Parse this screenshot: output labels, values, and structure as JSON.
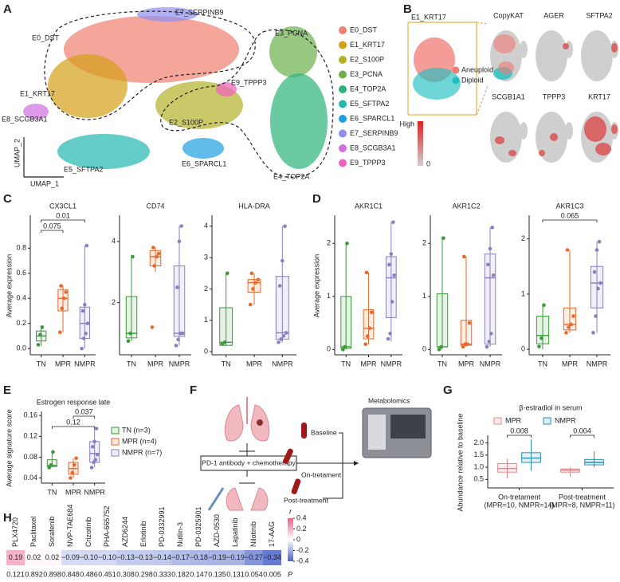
{
  "panels": [
    "A",
    "B",
    "C",
    "D",
    "E",
    "F",
    "G",
    "H"
  ],
  "umap": {
    "x_label": "UMAP_1",
    "y_label": "UMAP_2",
    "clusters": [
      {
        "name": "E0_DST",
        "color": "#f08070"
      },
      {
        "name": "E1_KRT17",
        "color": "#d4a017"
      },
      {
        "name": "E2_S100P",
        "color": "#b2b22a"
      },
      {
        "name": "E3_PCNA",
        "color": "#6ab04c"
      },
      {
        "name": "E4_TOP2A",
        "color": "#2db37a"
      },
      {
        "name": "E5_SFTPA2",
        "color": "#22b8b0"
      },
      {
        "name": "E6_SPARCL1",
        "color": "#1ea0e0"
      },
      {
        "name": "E7_SERPINB9",
        "color": "#8f8ff0"
      },
      {
        "name": "E8_SCGB3A1",
        "color": "#d070e0"
      },
      {
        "name": "E9_TPPP3",
        "color": "#f060c0"
      }
    ]
  },
  "feature_plots": {
    "inset_label": "E1_KRT17",
    "legend": [
      {
        "name": "Aneuploid",
        "color": "#f07b74"
      },
      {
        "name": "Diploid",
        "color": "#20c0c0"
      }
    ],
    "genes": [
      "CopyKAT",
      "AGER",
      "SFTPA2",
      "SCGB1A1",
      "TPPP3",
      "KRT17"
    ],
    "colorbar": {
      "high_label": "High",
      "low": 0,
      "colors": [
        "#d0d0d0",
        "#e02020"
      ]
    }
  },
  "diagram": {
    "baseline": "Baseline",
    "treatment": "PD-1 antibody + chemotherapy",
    "on": "On-tretament",
    "post": "Post-treatment",
    "metabolomics": "Metabolomics"
  },
  "chart_data": [
    {
      "type": "box",
      "title": "CX3CL1",
      "y_label": "Average expression",
      "categories": [
        "TN",
        "MPR",
        "NMPR"
      ],
      "ylim": [
        -0.05,
        1.05
      ],
      "yticks": [
        {
          "value": 0,
          "label": "0.0"
        },
        0.2,
        0.4,
        0.6,
        0.8
      ],
      "groups": [
        {
          "color": "#3a9a3a",
          "box": {
            "min": 0.02,
            "q1": 0.06,
            "median": 0.1,
            "q3": 0.14,
            "max": 0.18
          },
          "points": [
            0.03,
            0.11,
            0.17
          ]
        },
        {
          "color": "#e8692a",
          "box": {
            "min": 0.13,
            "q1": 0.3,
            "median": 0.4,
            "q3": 0.47,
            "max": 0.5
          },
          "points": [
            0.13,
            0.32,
            0.4,
            0.45,
            0.5
          ]
        },
        {
          "color": "#8a7fc0",
          "box": {
            "min": 0.0,
            "q1": 0.08,
            "median": 0.2,
            "q3": 0.33,
            "max": 0.82
          },
          "points": [
            0.0,
            0.08,
            0.12,
            0.2,
            0.3,
            0.35,
            0.82
          ]
        }
      ],
      "brackets": [
        {
          "from": "TN",
          "to": "NMPR",
          "p": 0.01
        },
        {
          "from": "TN",
          "to": "MPR",
          "p": 0.075
        }
      ]
    },
    {
      "type": "box",
      "title": "CD74",
      "categories": [
        "TN",
        "MPR",
        "NMPR"
      ],
      "ylim": [
        0.3,
        4.8
      ],
      "yticks": [
        2,
        4
      ],
      "groups": [
        {
          "color": "#3a9a3a",
          "box": {
            "min": 0.75,
            "q1": 0.85,
            "median": 1.0,
            "q3": 2.2,
            "max": 3.5
          },
          "points": [
            0.75,
            1.0,
            3.5
          ]
        },
        {
          "color": "#e8692a",
          "box": {
            "min": 3.0,
            "q1": 3.2,
            "median": 3.5,
            "q3": 3.7,
            "max": 3.8
          },
          "points": [
            1.2,
            3.2,
            3.5,
            3.6,
            3.8
          ]
        },
        {
          "color": "#8a7fc0",
          "box": {
            "min": 0.6,
            "q1": 0.9,
            "median": 1.0,
            "q3": 3.2,
            "max": 4.5
          },
          "points": [
            0.6,
            0.8,
            1.0,
            1.0,
            2.5,
            4.0,
            4.5
          ]
        }
      ],
      "brackets": []
    },
    {
      "type": "box",
      "title": "HLA-DRA",
      "categories": [
        "TN",
        "MPR",
        "NMPR"
      ],
      "ylim": [
        -0.1,
        4.3
      ],
      "yticks": [
        0,
        1,
        2,
        3,
        4
      ],
      "groups": [
        {
          "color": "#3a9a3a",
          "box": {
            "min": 0.2,
            "q1": 0.2,
            "median": 0.3,
            "q3": 1.4,
            "max": 2.5
          },
          "points": [
            0.25,
            0.3,
            2.5
          ]
        },
        {
          "color": "#e8692a",
          "box": {
            "min": 1.5,
            "q1": 1.9,
            "median": 2.2,
            "q3": 2.3,
            "max": 2.5
          },
          "points": [
            1.5,
            2.0,
            2.2,
            2.3,
            2.5
          ]
        },
        {
          "color": "#8a7fc0",
          "box": {
            "min": 0.3,
            "q1": 0.4,
            "median": 0.6,
            "q3": 2.4,
            "max": 4.0
          },
          "points": [
            0.3,
            0.4,
            0.5,
            0.6,
            2.1,
            2.9,
            4.0
          ]
        }
      ],
      "brackets": []
    },
    {
      "type": "box",
      "title": "AKR1C1",
      "y_label": "Average expression",
      "categories": [
        "TN",
        "MPR",
        "NMPR"
      ],
      "ylim": [
        -0.1,
        2.5
      ],
      "yticks": [
        0,
        1,
        2
      ],
      "groups": [
        {
          "color": "#3a9a3a",
          "box": {
            "min": 0.0,
            "q1": 0.02,
            "median": 0.05,
            "q3": 1.0,
            "max": 2.0
          },
          "points": [
            0.0,
            0.05,
            2.0
          ]
        },
        {
          "color": "#e8692a",
          "box": {
            "min": 0.1,
            "q1": 0.2,
            "median": 0.4,
            "q3": 0.75,
            "max": 1.45
          },
          "points": [
            0.1,
            0.25,
            0.4,
            0.7,
            1.45
          ]
        },
        {
          "color": "#8a7fc0",
          "box": {
            "min": 0.15,
            "q1": 0.6,
            "median": 1.35,
            "q3": 1.75,
            "max": 2.4
          },
          "points": [
            0.2,
            0.3,
            0.9,
            1.4,
            1.6,
            1.8,
            2.4
          ]
        }
      ],
      "brackets": []
    },
    {
      "type": "box",
      "title": "AKR1C2",
      "categories": [
        "TN",
        "MPR",
        "NMPR"
      ],
      "ylim": [
        -0.1,
        2.5
      ],
      "yticks": [
        0,
        1,
        2
      ],
      "groups": [
        {
          "color": "#3a9a3a",
          "box": {
            "min": 0.0,
            "q1": 0.05,
            "median": 0.05,
            "q3": 1.05,
            "max": 2.1
          },
          "points": [
            0.0,
            0.05,
            2.1
          ]
        },
        {
          "color": "#e8692a",
          "box": {
            "min": 0.05,
            "q1": 0.08,
            "median": 0.1,
            "q3": 0.55,
            "max": 1.75
          },
          "points": [
            0.05,
            0.1,
            0.1,
            0.5,
            1.75
          ]
        },
        {
          "color": "#8a7fc0",
          "box": {
            "min": 0.05,
            "q1": 0.1,
            "median": 1.35,
            "q3": 1.8,
            "max": 2.3
          },
          "points": [
            0.05,
            0.15,
            0.3,
            1.4,
            1.6,
            1.9,
            2.3
          ]
        }
      ],
      "brackets": []
    },
    {
      "type": "box",
      "title": "AKR1C3",
      "categories": [
        "TN",
        "MPR",
        "NMPR"
      ],
      "ylim": [
        -0.1,
        2.4
      ],
      "yticks": [
        0,
        1,
        2
      ],
      "groups": [
        {
          "color": "#3a9a3a",
          "box": {
            "min": 0.0,
            "q1": 0.1,
            "median": 0.25,
            "q3": 0.6,
            "max": 0.8
          },
          "points": [
            0.05,
            0.2,
            0.8
          ]
        },
        {
          "color": "#e8692a",
          "box": {
            "min": 0.3,
            "q1": 0.35,
            "median": 0.45,
            "q3": 0.75,
            "max": 1.8
          },
          "points": [
            0.3,
            0.4,
            0.45,
            0.6,
            1.8
          ]
        },
        {
          "color": "#8a7fc0",
          "box": {
            "min": 0.3,
            "q1": 0.75,
            "median": 1.2,
            "q3": 1.5,
            "max": 1.95
          },
          "points": [
            0.3,
            0.6,
            1.1,
            1.2,
            1.4,
            1.8,
            1.95
          ]
        }
      ],
      "brackets": [
        {
          "from": "TN",
          "to": "NMPR",
          "p": 0.065
        }
      ]
    },
    {
      "type": "box",
      "title": "Estrogen response late",
      "y_label": "Average signature score",
      "categories": [
        "TN",
        "MPR",
        "NMPR"
      ],
      "legend": [
        "TN (n=3)",
        "MPR (n=4)",
        "NMPR (n=7)"
      ],
      "ylim": [
        0.03,
        0.165
      ],
      "yticks": [
        0.04,
        0.08,
        0.12,
        0.16
      ],
      "groups": [
        {
          "color": "#3a9a3a",
          "box": {
            "min": 0.06,
            "q1": 0.062,
            "median": 0.064,
            "q3": 0.075,
            "max": 0.09
          },
          "points": [
            0.06,
            0.065,
            0.09
          ]
        },
        {
          "color": "#e8692a",
          "box": {
            "min": 0.04,
            "q1": 0.047,
            "median": 0.058,
            "q3": 0.07,
            "max": 0.078
          },
          "points": [
            0.04,
            0.05,
            0.065,
            0.078
          ]
        },
        {
          "color": "#8a7fc0",
          "box": {
            "min": 0.06,
            "q1": 0.07,
            "median": 0.087,
            "q3": 0.11,
            "max": 0.135
          },
          "points": [
            0.06,
            0.07,
            0.075,
            0.085,
            0.1,
            0.11,
            0.135
          ]
        }
      ],
      "brackets": [
        {
          "from": "MPR",
          "to": "NMPR",
          "p": 0.037
        },
        {
          "from": "TN",
          "to": "NMPR",
          "p": 0.12
        }
      ]
    },
    {
      "type": "box",
      "title": "β-estradiol in serum",
      "y_label": "Abundance relative to baseline",
      "categories": [
        "On-tretament",
        "Post-treatment"
      ],
      "category_notes": [
        "(MPR=10, NMPR=14)",
        "(MPR=8, NMPR=11)"
      ],
      "ylim": [
        0.15,
        2.25
      ],
      "yticks": [
        {
          "value": 0.5,
          "label": "0.5"
        },
        {
          "value": 1,
          "label": "1.0"
        },
        {
          "value": 1.5,
          "label": "1.5"
        },
        {
          "value": 2,
          "label": "2.0"
        }
      ],
      "series": [
        {
          "name": "MPR",
          "color": "#e8868a",
          "boxes": [
            {
              "min": 0.55,
              "q1": 0.8,
              "median": 0.95,
              "q3": 1.15,
              "max": 1.35
            },
            {
              "min": 0.6,
              "q1": 0.8,
              "median": 0.88,
              "q3": 0.93,
              "max": 1.0
            }
          ]
        },
        {
          "name": "NMPR",
          "color": "#2a8fb0",
          "boxes": [
            {
              "min": 0.85,
              "q1": 1.2,
              "median": 1.38,
              "q3": 1.6,
              "max": 2.15
            },
            {
              "min": 1.0,
              "q1": 1.1,
              "median": 1.2,
              "q3": 1.32,
              "max": 1.65
            }
          ]
        }
      ],
      "brackets": [
        {
          "category": "On-tretament",
          "p": 0.008
        },
        {
          "category": "Post-treatment",
          "p": 0.004
        }
      ]
    },
    {
      "type": "heatmap",
      "row_label": "P",
      "categories": [
        "PLX4720",
        "Paclitaxel",
        "Sorafenib",
        "NVP-TAE684",
        "Crizotinib",
        "PHA-665752",
        "AZD6244",
        "Erlotinib",
        "PD-0332991",
        "Nutlin-3",
        "PD-0325901",
        "AZD-0530",
        "Lapatinib",
        "Nilotinib",
        "17-AAG"
      ],
      "values": [
        0.19,
        0.02,
        0.02,
        -0.09,
        -0.1,
        -0.1,
        -0.13,
        -0.13,
        -0.14,
        -0.17,
        -0.18,
        -0.19,
        -0.19,
        -0.27,
        -0.34
      ],
      "value_labels": [
        "0.19",
        "0.02",
        "0.02",
        "−0.09",
        "−0.10",
        "−0.10",
        "−0.13",
        "−0.13",
        "−0.14",
        "−0.17",
        "−0.18",
        "−0.19",
        "−0.19",
        "−0.27",
        "−0.34"
      ],
      "p_values": [
        0.121,
        0.892,
        0.898,
        0.848,
        0.486,
        0.451,
        0.308,
        0.298,
        0.333,
        0.182,
        0.147,
        0.135,
        0.131,
        0.054,
        0.005
      ],
      "colorbar": {
        "label": "r",
        "lim": [
          -0.4,
          0.4
        ],
        "ticks": [
          0.4,
          0.2,
          0,
          -0.2,
          -0.4
        ],
        "colors": [
          "#4a62c8",
          "#ffffff",
          "#ec5f86"
        ]
      }
    }
  ]
}
